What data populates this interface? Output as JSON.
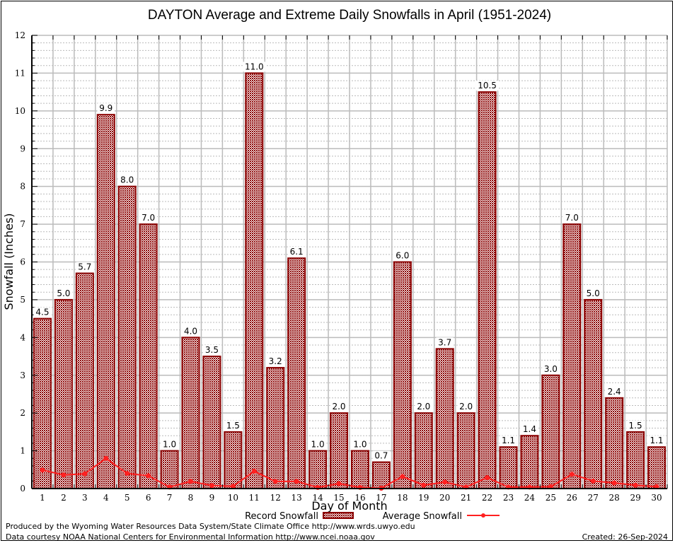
{
  "chart_data": {
    "type": "bar",
    "title": "DAYTON Average and Extreme Daily Snowfalls in April (1951-2024)",
    "xlabel": "Day of Month",
    "ylabel": "Snowfall (Inches)",
    "ylim": [
      0,
      12
    ],
    "yticks": [
      "0",
      "1",
      "2",
      "3",
      "4",
      "5",
      "6",
      "7",
      "8",
      "9",
      "10",
      "11",
      "12"
    ],
    "grid": true,
    "categories": [
      "1",
      "2",
      "3",
      "4",
      "5",
      "6",
      "7",
      "8",
      "9",
      "10",
      "11",
      "12",
      "13",
      "14",
      "15",
      "16",
      "17",
      "18",
      "19",
      "20",
      "21",
      "22",
      "23",
      "24",
      "25",
      "26",
      "27",
      "28",
      "29",
      "30"
    ],
    "series": [
      {
        "name": "Record Snowfall",
        "type": "bar",
        "color": "#8b0000",
        "values": [
          4.5,
          5.0,
          5.7,
          9.9,
          8.0,
          7.0,
          1.0,
          4.0,
          3.5,
          1.5,
          11.0,
          3.2,
          6.1,
          1.0,
          2.0,
          1.0,
          0.7,
          6.0,
          2.0,
          3.7,
          2.0,
          10.5,
          1.1,
          1.4,
          3.0,
          7.0,
          5.0,
          2.4,
          1.5,
          1.1
        ],
        "labels": [
          "4.5",
          "5.0",
          "5.7",
          "9.9",
          "8.0",
          "7.0",
          "1.0",
          "4.0",
          "3.5",
          "1.5",
          "11.0",
          "3.2",
          "6.1",
          "1.0",
          "2.0",
          "1.0",
          "0.7",
          "6.0",
          "2.0",
          "3.7",
          "2.0",
          "10.5",
          "1.1",
          "1.4",
          "3.0",
          "7.0",
          "5.0",
          "2.4",
          "1.5",
          "1.1"
        ]
      },
      {
        "name": "Average Snowfall",
        "type": "line",
        "color": "#ff2020",
        "values": [
          0.49,
          0.36,
          0.39,
          0.8,
          0.4,
          0.34,
          0.04,
          0.19,
          0.08,
          0.06,
          0.46,
          0.19,
          0.19,
          0.03,
          0.13,
          0.03,
          0.01,
          0.32,
          0.09,
          0.17,
          0.04,
          0.29,
          0.04,
          0.04,
          0.05,
          0.38,
          0.2,
          0.15,
          0.09,
          0.05
        ]
      }
    ],
    "legend": {
      "position": "bottom-center",
      "items": [
        "Record Snowfall",
        "Average Snowfall"
      ]
    }
  },
  "footer": {
    "producer": "Produced by the Wyoming Water Resources Data System/State Climate Office http://www.wrds.uwyo.edu",
    "source": "Data courtesy NOAA National Centers for Environmental Information http://www.ncei.noaa.gov",
    "created": "Created: 26-Sep-2024"
  }
}
